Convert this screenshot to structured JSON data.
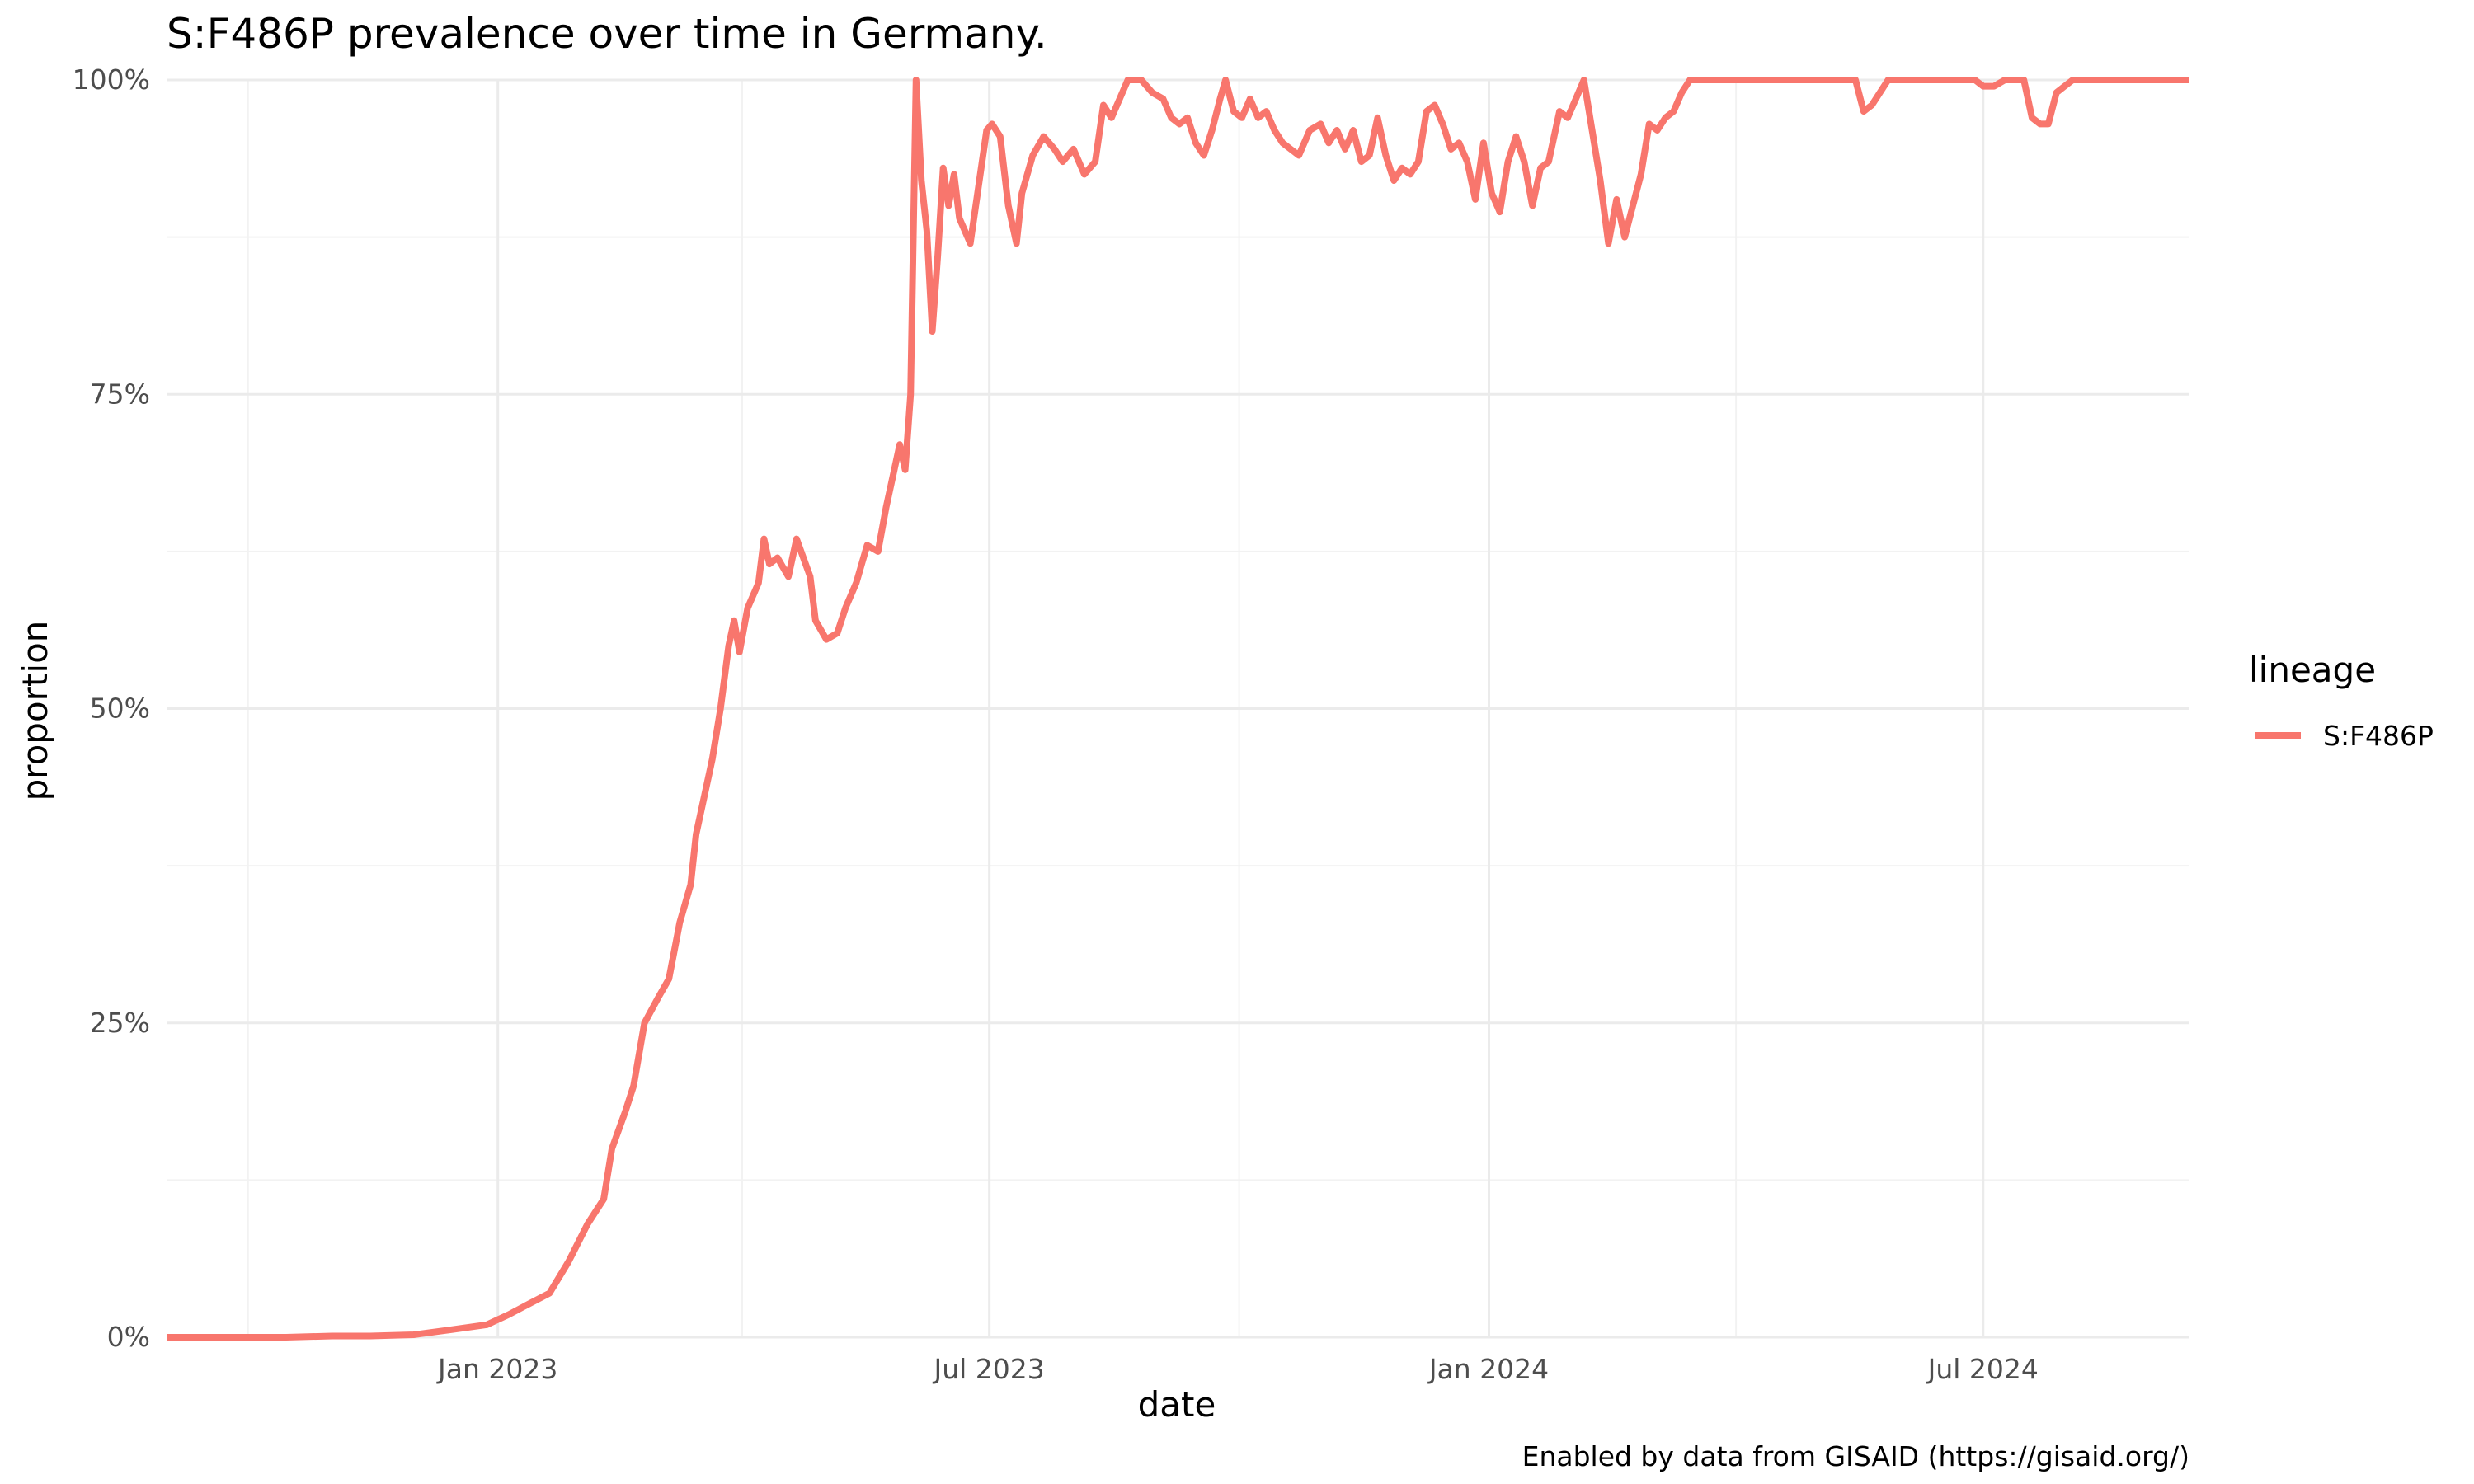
{
  "chart_data": {
    "type": "line",
    "title": "S:F486P prevalence over time in Germany.",
    "xlabel": "date",
    "ylabel": "proportion",
    "caption": "Enabled by data from GISAID (https://gisaid.org/)",
    "legend": {
      "title": "lineage",
      "position": "right"
    },
    "xlim": [
      "2022-09-01",
      "2024-09-15"
    ],
    "ylim": [
      0,
      1
    ],
    "x_ticks": [
      {
        "date": "2023-01-01",
        "label": "Jan 2023"
      },
      {
        "date": "2023-07-01",
        "label": "Jul 2023"
      },
      {
        "date": "2024-01-01",
        "label": "Jan 2024"
      },
      {
        "date": "2024-07-01",
        "label": "Jul 2024"
      }
    ],
    "x_minor_dates": [
      "2022-10-01",
      "2023-04-01",
      "2023-10-01",
      "2024-04-01"
    ],
    "y_ticks": [
      {
        "value": 0,
        "label": "0%"
      },
      {
        "value": 0.25,
        "label": "25%"
      },
      {
        "value": 0.5,
        "label": "50%"
      },
      {
        "value": 0.75,
        "label": "75%"
      },
      {
        "value": 1,
        "label": "100%"
      }
    ],
    "y_minor": [
      0.125,
      0.375,
      0.625,
      0.875
    ],
    "grid": true,
    "series": [
      {
        "name": "S:F486P",
        "color": "#F8766D",
        "points": [
          [
            "2022-09-01",
            0.0
          ],
          [
            "2022-10-15",
            0.0
          ],
          [
            "2022-11-01",
            0.001
          ],
          [
            "2022-11-15",
            0.001
          ],
          [
            "2022-12-01",
            0.002
          ],
          [
            "2022-12-15",
            0.006
          ],
          [
            "2022-12-28",
            0.01
          ],
          [
            "2023-01-05",
            0.018
          ],
          [
            "2023-01-12",
            0.026
          ],
          [
            "2023-01-20",
            0.035
          ],
          [
            "2023-01-27",
            0.06
          ],
          [
            "2023-02-03",
            0.09
          ],
          [
            "2023-02-09",
            0.11
          ],
          [
            "2023-02-12",
            0.15
          ],
          [
            "2023-02-17",
            0.18
          ],
          [
            "2023-02-20",
            0.2
          ],
          [
            "2023-02-24",
            0.25
          ],
          [
            "2023-03-01",
            0.27
          ],
          [
            "2023-03-05",
            0.285
          ],
          [
            "2023-03-09",
            0.33
          ],
          [
            "2023-03-13",
            0.36
          ],
          [
            "2023-03-15",
            0.4
          ],
          [
            "2023-03-21",
            0.46
          ],
          [
            "2023-03-24",
            0.5
          ],
          [
            "2023-03-27",
            0.55
          ],
          [
            "2023-03-29",
            0.57
          ],
          [
            "2023-03-31",
            0.545
          ],
          [
            "2023-04-03",
            0.58
          ],
          [
            "2023-04-07",
            0.6
          ],
          [
            "2023-04-09",
            0.635
          ],
          [
            "2023-04-11",
            0.615
          ],
          [
            "2023-04-14",
            0.62
          ],
          [
            "2023-04-18",
            0.605
          ],
          [
            "2023-04-21",
            0.635
          ],
          [
            "2023-04-26",
            0.605
          ],
          [
            "2023-04-28",
            0.57
          ],
          [
            "2023-05-02",
            0.555
          ],
          [
            "2023-05-06",
            0.56
          ],
          [
            "2023-05-09",
            0.58
          ],
          [
            "2023-05-13",
            0.6
          ],
          [
            "2023-05-17",
            0.63
          ],
          [
            "2023-05-21",
            0.625
          ],
          [
            "2023-05-24",
            0.66
          ],
          [
            "2023-05-27",
            0.69
          ],
          [
            "2023-05-29",
            0.71
          ],
          [
            "2023-05-31",
            0.69
          ],
          [
            "2023-06-02",
            0.75
          ],
          [
            "2023-06-04",
            1.0
          ],
          [
            "2023-06-06",
            0.92
          ],
          [
            "2023-06-08",
            0.88
          ],
          [
            "2023-06-10",
            0.8
          ],
          [
            "2023-06-12",
            0.86
          ],
          [
            "2023-06-14",
            0.93
          ],
          [
            "2023-06-16",
            0.9
          ],
          [
            "2023-06-18",
            0.925
          ],
          [
            "2023-06-20",
            0.89
          ],
          [
            "2023-06-22",
            0.88
          ],
          [
            "2023-06-24",
            0.87
          ],
          [
            "2023-06-27",
            0.915
          ],
          [
            "2023-06-30",
            0.96
          ],
          [
            "2023-07-02",
            0.965
          ],
          [
            "2023-07-05",
            0.955
          ],
          [
            "2023-07-08",
            0.9
          ],
          [
            "2023-07-11",
            0.87
          ],
          [
            "2023-07-13",
            0.91
          ],
          [
            "2023-07-17",
            0.94
          ],
          [
            "2023-07-21",
            0.955
          ],
          [
            "2023-07-25",
            0.945
          ],
          [
            "2023-07-28",
            0.935
          ],
          [
            "2023-08-01",
            0.945
          ],
          [
            "2023-08-05",
            0.925
          ],
          [
            "2023-08-09",
            0.935
          ],
          [
            "2023-08-12",
            0.98
          ],
          [
            "2023-08-15",
            0.97
          ],
          [
            "2023-08-18",
            0.985
          ],
          [
            "2023-08-21",
            1.0
          ],
          [
            "2023-08-26",
            1.0
          ],
          [
            "2023-08-30",
            0.99
          ],
          [
            "2023-09-03",
            0.985
          ],
          [
            "2023-09-06",
            0.97
          ],
          [
            "2023-09-09",
            0.965
          ],
          [
            "2023-09-12",
            0.97
          ],
          [
            "2023-09-15",
            0.95
          ],
          [
            "2023-09-18",
            0.94
          ],
          [
            "2023-09-21",
            0.96
          ],
          [
            "2023-09-24",
            0.985
          ],
          [
            "2023-09-26",
            1.0
          ],
          [
            "2023-09-29",
            0.975
          ],
          [
            "2023-10-02",
            0.97
          ],
          [
            "2023-10-05",
            0.985
          ],
          [
            "2023-10-08",
            0.97
          ],
          [
            "2023-10-11",
            0.975
          ],
          [
            "2023-10-14",
            0.96
          ],
          [
            "2023-10-17",
            0.95
          ],
          [
            "2023-10-20",
            0.945
          ],
          [
            "2023-10-23",
            0.94
          ],
          [
            "2023-10-27",
            0.96
          ],
          [
            "2023-10-31",
            0.965
          ],
          [
            "2023-11-03",
            0.95
          ],
          [
            "2023-11-06",
            0.96
          ],
          [
            "2023-11-09",
            0.945
          ],
          [
            "2023-11-12",
            0.96
          ],
          [
            "2023-11-15",
            0.935
          ],
          [
            "2023-11-18",
            0.94
          ],
          [
            "2023-11-21",
            0.97
          ],
          [
            "2023-11-24",
            0.94
          ],
          [
            "2023-11-27",
            0.92
          ],
          [
            "2023-11-30",
            0.93
          ],
          [
            "2023-12-03",
            0.925
          ],
          [
            "2023-12-06",
            0.935
          ],
          [
            "2023-12-09",
            0.975
          ],
          [
            "2023-12-12",
            0.98
          ],
          [
            "2023-12-15",
            0.965
          ],
          [
            "2023-12-18",
            0.945
          ],
          [
            "2023-12-21",
            0.95
          ],
          [
            "2023-12-24",
            0.935
          ],
          [
            "2023-12-27",
            0.905
          ],
          [
            "2023-12-30",
            0.95
          ],
          [
            "2024-01-02",
            0.91
          ],
          [
            "2024-01-05",
            0.895
          ],
          [
            "2024-01-08",
            0.935
          ],
          [
            "2024-01-11",
            0.955
          ],
          [
            "2024-01-14",
            0.935
          ],
          [
            "2024-01-17",
            0.9
          ],
          [
            "2024-01-20",
            0.93
          ],
          [
            "2024-01-23",
            0.935
          ],
          [
            "2024-01-27",
            0.975
          ],
          [
            "2024-01-30",
            0.97
          ],
          [
            "2024-02-02",
            0.985
          ],
          [
            "2024-02-05",
            1.0
          ],
          [
            "2024-02-08",
            0.96
          ],
          [
            "2024-02-11",
            0.92
          ],
          [
            "2024-02-14",
            0.87
          ],
          [
            "2024-02-17",
            0.905
          ],
          [
            "2024-02-20",
            0.875
          ],
          [
            "2024-02-23",
            0.9
          ],
          [
            "2024-02-26",
            0.925
          ],
          [
            "2024-02-29",
            0.965
          ],
          [
            "2024-03-03",
            0.96
          ],
          [
            "2024-03-06",
            0.97
          ],
          [
            "2024-03-09",
            0.975
          ],
          [
            "2024-03-12",
            0.99
          ],
          [
            "2024-03-15",
            1.0
          ],
          [
            "2024-05-15",
            1.0
          ],
          [
            "2024-05-18",
            0.975
          ],
          [
            "2024-05-21",
            0.98
          ],
          [
            "2024-05-24",
            0.99
          ],
          [
            "2024-05-27",
            1.0
          ],
          [
            "2024-06-28",
            1.0
          ],
          [
            "2024-07-01",
            0.995
          ],
          [
            "2024-07-05",
            0.995
          ],
          [
            "2024-07-09",
            1.0
          ],
          [
            "2024-07-16",
            1.0
          ],
          [
            "2024-07-19",
            0.97
          ],
          [
            "2024-07-22",
            0.965
          ],
          [
            "2024-07-25",
            0.965
          ],
          [
            "2024-07-28",
            0.99
          ],
          [
            "2024-07-31",
            0.995
          ],
          [
            "2024-08-03",
            1.0
          ],
          [
            "2024-09-15",
            1.0
          ]
        ]
      }
    ]
  }
}
